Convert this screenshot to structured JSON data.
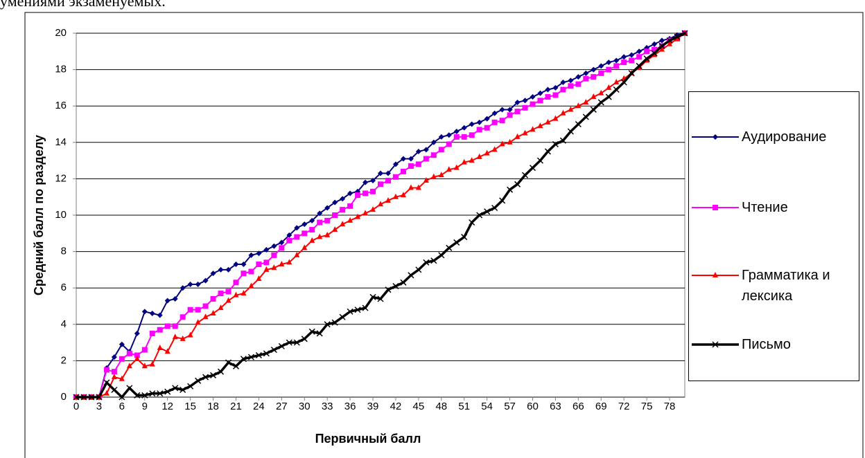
{
  "chart_data": {
    "type": "line",
    "annotations": [
      "умениями экзаменуемых."
    ],
    "xlabel": "Первичный балл",
    "ylabel": "Средний балл по разделу",
    "x": [
      0,
      1,
      2,
      3,
      4,
      5,
      6,
      7,
      8,
      9,
      10,
      11,
      12,
      13,
      14,
      15,
      16,
      17,
      18,
      19,
      20,
      21,
      22,
      23,
      24,
      25,
      26,
      27,
      28,
      29,
      30,
      31,
      32,
      33,
      34,
      35,
      36,
      37,
      38,
      39,
      40,
      41,
      42,
      43,
      44,
      45,
      46,
      47,
      48,
      49,
      50,
      51,
      52,
      53,
      54,
      55,
      56,
      57,
      58,
      59,
      60,
      61,
      62,
      63,
      64,
      65,
      66,
      67,
      68,
      69,
      70,
      71,
      72,
      73,
      74,
      75,
      76,
      77,
      78,
      79,
      80
    ],
    "xlim": [
      0,
      80
    ],
    "xticks": [
      0,
      3,
      6,
      9,
      12,
      15,
      18,
      21,
      24,
      27,
      30,
      33,
      36,
      39,
      42,
      45,
      48,
      51,
      54,
      57,
      60,
      63,
      66,
      69,
      72,
      75,
      78
    ],
    "ylim": [
      0,
      20
    ],
    "yticks": [
      0,
      2,
      4,
      6,
      8,
      10,
      12,
      14,
      16,
      18,
      20
    ],
    "grid": true,
    "series": [
      {
        "name": "Аудирование",
        "color": "#000080",
        "marker": "diamond",
        "values": [
          0,
          0,
          0,
          0,
          1.6,
          2.2,
          2.9,
          2.5,
          3.5,
          4.7,
          4.6,
          4.5,
          5.3,
          5.4,
          6.0,
          6.2,
          6.2,
          6.4,
          6.8,
          7.0,
          7.0,
          7.3,
          7.3,
          7.8,
          7.9,
          8.1,
          8.3,
          8.5,
          8.9,
          9.3,
          9.5,
          9.7,
          10.1,
          10.4,
          10.7,
          10.9,
          11.2,
          11.3,
          11.8,
          11.9,
          12.3,
          12.3,
          12.8,
          13.1,
          13.1,
          13.5,
          13.6,
          14.0,
          14.3,
          14.4,
          14.6,
          14.8,
          15.0,
          15.1,
          15.3,
          15.6,
          15.8,
          15.8,
          16.2,
          16.3,
          16.5,
          16.7,
          16.9,
          17.0,
          17.3,
          17.4,
          17.6,
          17.8,
          18.0,
          18.2,
          18.4,
          18.5,
          18.7,
          18.8,
          19.0,
          19.2,
          19.4,
          19.6,
          19.7,
          19.9,
          20.0
        ]
      },
      {
        "name": "Чтение",
        "color": "#ff00ff",
        "marker": "square",
        "values": [
          0,
          0,
          0,
          0,
          1.5,
          1.4,
          2.1,
          2.4,
          2.3,
          2.6,
          3.5,
          3.7,
          3.9,
          3.9,
          4.4,
          4.8,
          4.8,
          5.0,
          5.4,
          5.7,
          5.8,
          6.3,
          6.8,
          6.9,
          7.3,
          7.4,
          7.8,
          8.2,
          8.6,
          8.8,
          9.0,
          9.2,
          9.6,
          9.7,
          10.0,
          10.3,
          10.5,
          11.1,
          11.2,
          11.3,
          11.7,
          11.9,
          12.1,
          12.4,
          12.7,
          12.8,
          13.1,
          13.3,
          13.6,
          13.9,
          14.3,
          14.3,
          14.4,
          14.7,
          14.8,
          15.1,
          15.2,
          15.5,
          15.7,
          15.9,
          16.1,
          16.3,
          16.5,
          16.6,
          16.9,
          17.1,
          17.2,
          17.5,
          17.6,
          17.8,
          18.0,
          18.2,
          18.4,
          18.5,
          18.7,
          19.0,
          19.1,
          19.3,
          19.6,
          19.7,
          20.0
        ]
      },
      {
        "name": "Грамматика и лексика",
        "color": "#ff0000",
        "marker": "triangle",
        "values": [
          0,
          0,
          0,
          0,
          0.2,
          1.1,
          1.0,
          1.7,
          2.1,
          1.7,
          1.8,
          2.7,
          2.5,
          3.3,
          3.2,
          3.4,
          4.1,
          4.4,
          4.6,
          4.9,
          5.3,
          5.6,
          5.7,
          6.1,
          6.5,
          7.0,
          7.1,
          7.3,
          7.4,
          7.8,
          8.2,
          8.6,
          8.8,
          8.9,
          9.2,
          9.5,
          9.7,
          9.9,
          10.1,
          10.3,
          10.6,
          10.8,
          11.0,
          11.1,
          11.5,
          11.5,
          11.9,
          12.1,
          12.2,
          12.5,
          12.6,
          12.9,
          13.0,
          13.2,
          13.4,
          13.6,
          13.9,
          14.0,
          14.3,
          14.5,
          14.7,
          14.9,
          15.1,
          15.3,
          15.6,
          15.8,
          16.0,
          16.2,
          16.5,
          16.7,
          17.0,
          17.3,
          17.5,
          17.8,
          18.1,
          18.5,
          18.8,
          19.1,
          19.4,
          19.7,
          20.0
        ]
      },
      {
        "name": "Письмо",
        "color": "#000000",
        "marker": "x",
        "values": [
          0,
          0,
          0,
          0,
          0.8,
          0.4,
          0.0,
          0.5,
          0.1,
          0.1,
          0.2,
          0.2,
          0.3,
          0.5,
          0.4,
          0.6,
          0.9,
          1.1,
          1.2,
          1.4,
          1.9,
          1.7,
          2.1,
          2.2,
          2.3,
          2.4,
          2.6,
          2.8,
          3.0,
          3.0,
          3.2,
          3.6,
          3.5,
          4.0,
          4.1,
          4.4,
          4.7,
          4.8,
          4.9,
          5.5,
          5.4,
          5.9,
          6.1,
          6.3,
          6.7,
          7.0,
          7.4,
          7.5,
          7.8,
          8.2,
          8.5,
          8.8,
          9.6,
          10.0,
          10.2,
          10.4,
          10.8,
          11.4,
          11.7,
          12.2,
          12.6,
          13.0,
          13.5,
          13.9,
          14.1,
          14.6,
          15.0,
          15.4,
          15.8,
          16.2,
          16.5,
          16.9,
          17.3,
          17.8,
          18.2,
          18.6,
          18.9,
          19.3,
          19.6,
          19.8,
          20.0
        ]
      }
    ]
  }
}
